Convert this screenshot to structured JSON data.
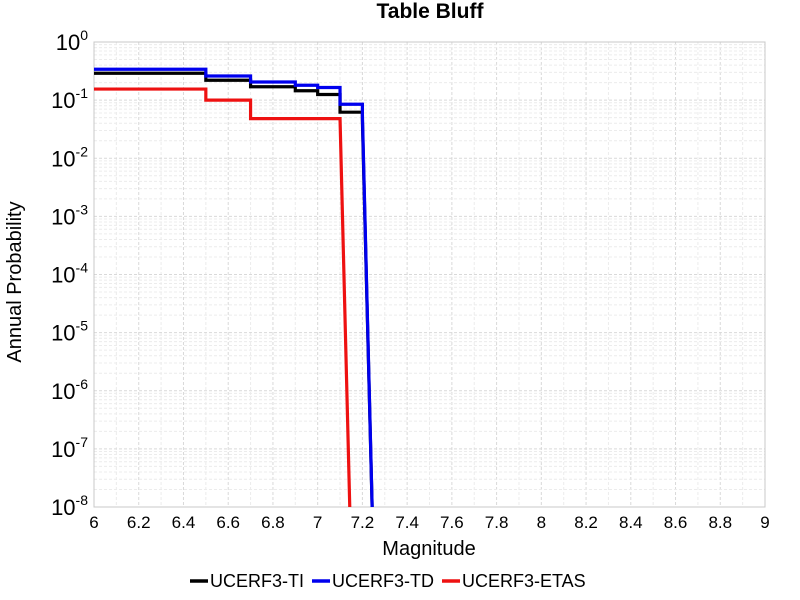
{
  "chart_data": {
    "type": "line",
    "title": "Table Bluff",
    "xlabel": "Magnitude",
    "ylabel": "Annual Probability",
    "xlim": [
      6,
      9
    ],
    "ylim": [
      1e-08,
      1
    ],
    "yscale": "log",
    "grid": true,
    "legend": "bottom",
    "x_ticks": [
      "6",
      "6.2",
      "6.4",
      "6.6",
      "6.8",
      "7",
      "7.2",
      "7.4",
      "7.6",
      "7.8",
      "8",
      "8.2",
      "8.4",
      "8.6",
      "8.8",
      "9"
    ],
    "y_ticks": [
      {
        "base": "10",
        "exp": "0"
      },
      {
        "base": "10",
        "exp": "-1"
      },
      {
        "base": "10",
        "exp": "-2"
      },
      {
        "base": "10",
        "exp": "-3"
      },
      {
        "base": "10",
        "exp": "-4"
      },
      {
        "base": "10",
        "exp": "-5"
      },
      {
        "base": "10",
        "exp": "-6"
      },
      {
        "base": "10",
        "exp": "-7"
      },
      {
        "base": "10",
        "exp": "-8"
      }
    ],
    "series": [
      {
        "name": "UCERF3-TI",
        "color": "#000000",
        "x": [
          6.0,
          6.1,
          6.2,
          6.3,
          6.4,
          6.5,
          6.6,
          6.7,
          6.8,
          6.9,
          7.0,
          7.1,
          7.2,
          7.25
        ],
        "y": [
          0.29,
          0.29,
          0.29,
          0.29,
          0.29,
          0.22,
          0.22,
          0.17,
          0.17,
          0.145,
          0.125,
          0.062,
          0.044,
          1e-09
        ]
      },
      {
        "name": "UCERF3-TD",
        "color": "#0000ee",
        "x": [
          6.0,
          6.1,
          6.2,
          6.3,
          6.4,
          6.5,
          6.6,
          6.7,
          6.8,
          6.9,
          7.0,
          7.1,
          7.2,
          7.25
        ],
        "y": [
          0.34,
          0.34,
          0.34,
          0.34,
          0.34,
          0.26,
          0.26,
          0.205,
          0.205,
          0.18,
          0.165,
          0.085,
          0.057,
          1e-09
        ]
      },
      {
        "name": "UCERF3-ETAS",
        "color": "#ee1111",
        "x": [
          6.0,
          6.1,
          6.2,
          6.3,
          6.4,
          6.5,
          6.6,
          6.7,
          6.8,
          6.9,
          7.0,
          7.1,
          7.15
        ],
        "y": [
          0.155,
          0.155,
          0.155,
          0.155,
          0.155,
          0.1,
          0.1,
          0.048,
          0.048,
          0.048,
          0.048,
          0.048,
          1e-09
        ]
      }
    ]
  }
}
